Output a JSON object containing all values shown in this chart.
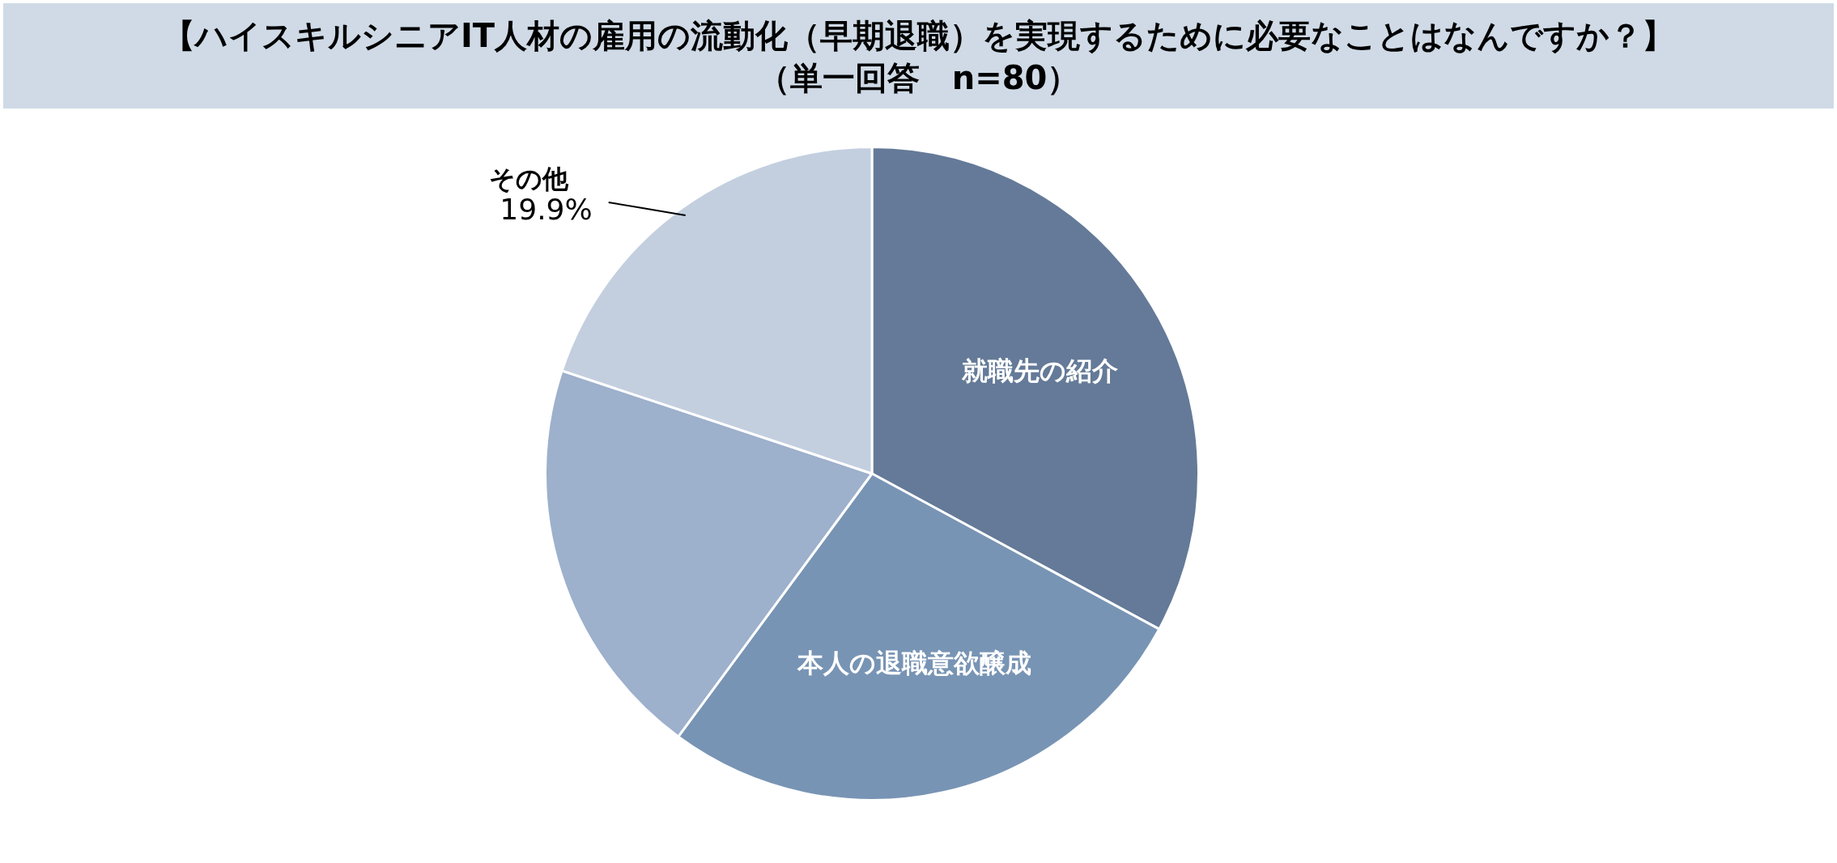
{
  "chart_data": {
    "type": "pie",
    "title": "【ハイスキルシニアIT人材の雇用の流動化（早期退職）を実現するために必要なことはなんですか？】",
    "subtitle": "（単一回答　n=80）",
    "categories": [
      "就職先の紹介",
      "本人の退職意欲醸成",
      null,
      "その他"
    ],
    "values": [
      32.9,
      27.2,
      20.0,
      19.9
    ],
    "colors": [
      "#647a98",
      "#7894b4",
      "#9db0cc",
      "#c3cfdf"
    ],
    "value_labels": [
      null,
      null,
      null,
      "19.9%"
    ],
    "legend": false
  }
}
